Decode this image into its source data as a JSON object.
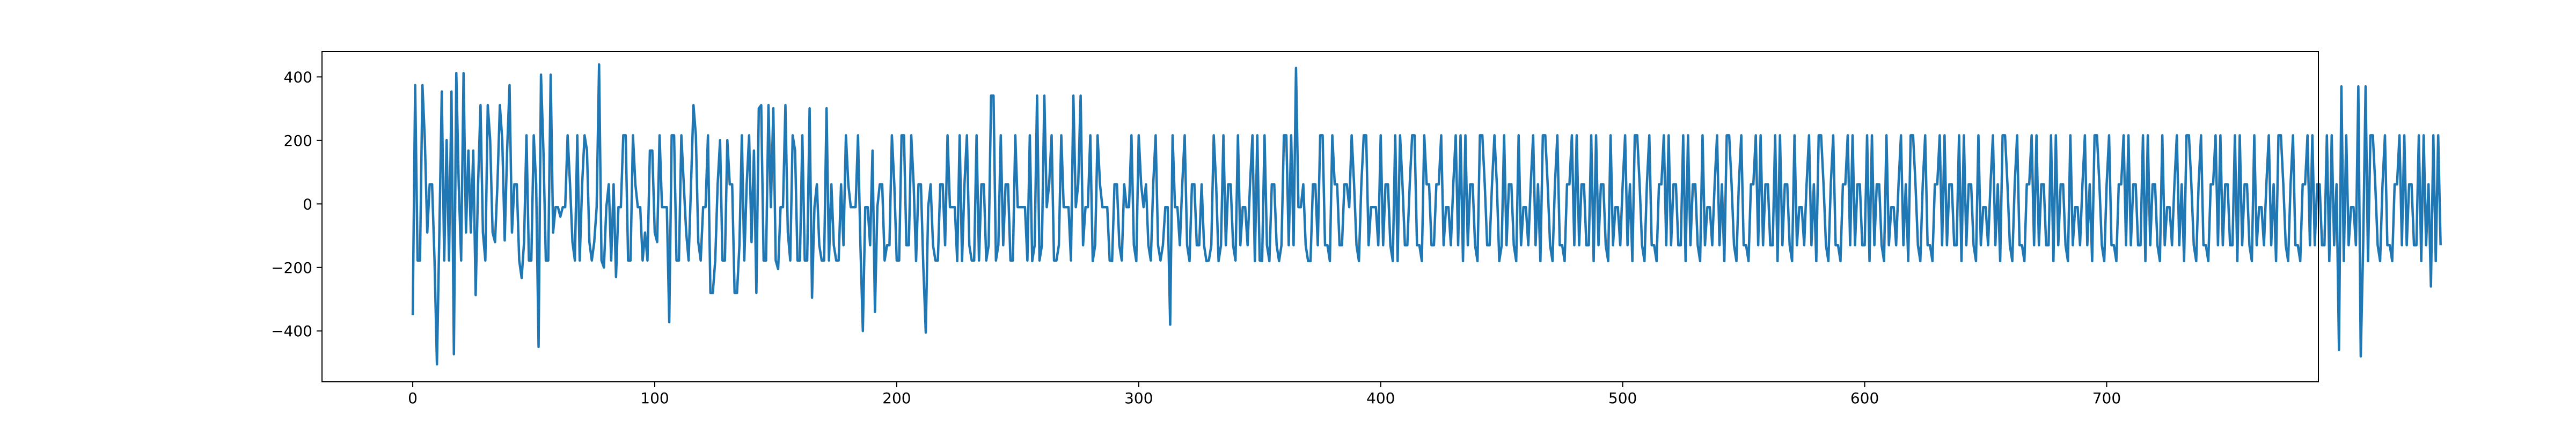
{
  "chart_data": {
    "type": "line",
    "title": "",
    "xlabel": "",
    "ylabel": "",
    "xlim": [
      -37.5,
      787.5
    ],
    "ylim": [
      -560,
      480
    ],
    "xticks": [
      0,
      100,
      200,
      300,
      400,
      500,
      600,
      700
    ],
    "yticks": [
      -400,
      -200,
      0,
      200,
      400
    ],
    "xtick_labels": [
      "0",
      "100",
      "200",
      "300",
      "400",
      "500",
      "600",
      "700"
    ],
    "ytick_labels": [
      "−400",
      "−200",
      "0",
      "200",
      "400"
    ],
    "grid": false,
    "legend": "none",
    "series": [
      {
        "color": "#1f77b4",
        "x_start": 0,
        "x_step": 1,
        "values": [
          -350,
          374,
          -178,
          -178,
          374,
          201,
          -90,
          62,
          62,
          -178,
          -505,
          -90,
          354,
          -178,
          201,
          -178,
          354,
          -473,
          412,
          62,
          -178,
          412,
          -90,
          168,
          -90,
          168,
          -287,
          62,
          311,
          -90,
          -178,
          311,
          201,
          -90,
          -120,
          62,
          311,
          201,
          -115,
          168,
          374,
          -90,
          62,
          62,
          -178,
          -233,
          -120,
          216,
          -178,
          -178,
          216,
          62,
          -450,
          407,
          168,
          -178,
          -178,
          407,
          -90,
          -10,
          -10,
          -40,
          -10,
          -10,
          216,
          62,
          -120,
          -178,
          216,
          -178,
          62,
          216,
          168,
          -120,
          -178,
          -120,
          -10,
          439,
          -178,
          -200,
          -10,
          62,
          -178,
          62,
          -230,
          -10,
          -10,
          216,
          216,
          -178,
          -178,
          216,
          62,
          -10,
          -10,
          -178,
          -90,
          -178,
          168,
          168,
          -90,
          -120,
          216,
          -10,
          -10,
          -10,
          -372,
          216,
          216,
          -178,
          -178,
          216,
          62,
          -90,
          -178,
          62,
          311,
          216,
          -120,
          -178,
          -10,
          -10,
          216,
          -280,
          -280,
          -178,
          62,
          201,
          -178,
          -178,
          201,
          62,
          62,
          -280,
          -280,
          -130,
          216,
          -178,
          62,
          216,
          -120,
          168,
          -280,
          301,
          311,
          -178,
          -178,
          311,
          -10,
          301,
          -178,
          -205,
          -10,
          -10,
          311,
          -90,
          -178,
          216,
          168,
          -178,
          -178,
          216,
          -178,
          -178,
          301,
          -295,
          -10,
          62,
          -130,
          -178,
          -178,
          301,
          -178,
          62,
          -130,
          -178,
          -178,
          62,
          -130,
          216,
          62,
          -10,
          -10,
          -10,
          216,
          -130,
          -400,
          -10,
          -10,
          -130,
          168,
          -340,
          -10,
          62,
          62,
          -178,
          -130,
          -130,
          216,
          62,
          -178,
          -178,
          216,
          216,
          -130,
          -130,
          216,
          62,
          -180,
          62,
          62,
          -200,
          -405,
          -10,
          62,
          -130,
          -178,
          -178,
          62,
          62,
          -130,
          216,
          -10,
          -10,
          -10,
          -180,
          216,
          -180,
          62,
          216,
          -130,
          -178,
          -178,
          216,
          -178,
          62,
          62,
          -178,
          -130,
          341,
          341,
          -178,
          -130,
          216,
          -130,
          62,
          62,
          -178,
          -178,
          216,
          -10,
          -10,
          -10,
          -10,
          -178,
          216,
          -180,
          -130,
          341,
          -178,
          -130,
          341,
          -10,
          62,
          216,
          -178,
          -178,
          -130,
          216,
          -10,
          -10,
          -10,
          -178,
          341,
          -10,
          62,
          341,
          -130,
          -10,
          -10,
          216,
          -180,
          -130,
          216,
          62,
          -10,
          -10,
          -10,
          -178,
          -180,
          62,
          62,
          -130,
          -178,
          62,
          -10,
          -10,
          216,
          -130,
          -180,
          216,
          62,
          -10,
          62,
          -130,
          -178,
          62,
          216,
          -130,
          -178,
          -130,
          -10,
          -10,
          -380,
          216,
          -10,
          -10,
          -130,
          62,
          216,
          -130,
          -180,
          62,
          62,
          -130,
          -130,
          62,
          -130,
          -180,
          -178,
          -130,
          216,
          62,
          -180,
          -130,
          216,
          -130,
          62,
          62,
          -130,
          -178,
          216,
          -130,
          -10,
          -10,
          -130,
          62,
          216,
          -180,
          216,
          -178,
          -180,
          216,
          -130,
          -180,
          62,
          62,
          -130,
          -180,
          -130,
          216,
          216,
          -130,
          216,
          -130,
          428,
          -10,
          -10,
          62,
          -130,
          -180,
          -180,
          62,
          62,
          -130,
          216,
          216,
          -130,
          -130,
          -180,
          216,
          62,
          62,
          -130,
          -130,
          62,
          62,
          -10,
          216,
          62,
          -130,
          -180,
          62,
          216,
          216,
          -130,
          -10,
          -10,
          -10,
          -130,
          216,
          -130,
          62,
          62,
          -130,
          -180,
          216,
          -180,
          216,
          62,
          -130,
          -130,
          62,
          216,
          216,
          -130,
          -130,
          -180,
          216,
          62,
          62,
          -130,
          -130,
          62,
          62,
          216,
          -130,
          -10,
          -10,
          -130,
          62,
          216,
          -130,
          216,
          -180,
          216,
          -130,
          62,
          62,
          -130,
          -180,
          216,
          216,
          62,
          -130,
          -130,
          62,
          216,
          62,
          -180,
          -130,
          216,
          -130,
          62,
          62,
          -130,
          -180,
          216,
          -130,
          -10,
          -10,
          -130,
          62,
          216,
          -130,
          62,
          -180,
          216,
          216,
          62,
          -130,
          -180,
          62,
          216,
          -130,
          -130,
          -180,
          62,
          62,
          216,
          -130,
          216,
          -130,
          62,
          62,
          -130,
          -130,
          216,
          -180,
          216,
          -130,
          62,
          62,
          -130,
          -180,
          216,
          -130,
          -10,
          -10,
          -130,
          62,
          216,
          -130,
          62,
          -180,
          216,
          216,
          62,
          -130,
          -180,
          62,
          216,
          -130,
          -130,
          -180,
          62,
          62,
          216,
          -130,
          216,
          -130,
          62,
          62,
          -130,
          -130,
          216,
          -180,
          216,
          -130,
          62,
          62,
          -130,
          -180,
          216,
          -130,
          -10,
          -10,
          -130,
          62,
          216,
          -130,
          62,
          -180,
          216,
          216,
          62,
          -130,
          -180,
          62,
          216,
          -130,
          -130,
          -180,
          62,
          62,
          216,
          -130,
          216,
          -130,
          62,
          62,
          -130,
          -130,
          216,
          -180,
          216,
          -130,
          62,
          62,
          -130,
          -180,
          216,
          -130,
          -10,
          -10,
          -130,
          62,
          216,
          -130,
          62,
          -180,
          216,
          216,
          62,
          -130,
          -180,
          62,
          216,
          -130,
          -130,
          -180,
          62,
          62,
          216,
          -130,
          216,
          -130,
          62,
          62,
          -130,
          -130,
          216,
          -180,
          216,
          -130,
          62,
          62,
          -130,
          -180,
          216,
          -130,
          -10,
          -10,
          -130,
          62,
          216,
          -130,
          62,
          -180,
          216,
          216,
          62,
          -130,
          -180,
          62,
          216,
          -130,
          -130,
          -180,
          62,
          62,
          216,
          -130,
          216,
          -130,
          62,
          62,
          -130,
          -130,
          216,
          -180,
          216,
          -130,
          62,
          62,
          -130,
          -180,
          216,
          -130,
          -10,
          -10,
          -130,
          62,
          216,
          -130,
          62,
          -180,
          216,
          216,
          62,
          -130,
          -180,
          62,
          216,
          -130,
          -130,
          -180,
          62,
          62,
          216,
          -130,
          216,
          -130,
          62,
          62,
          -130,
          -130,
          216,
          -180,
          216,
          -130,
          62,
          62,
          -130,
          -180,
          216,
          -130,
          -10,
          -10,
          -130,
          62,
          216,
          -130,
          62,
          -180,
          216,
          216,
          62,
          -130,
          -180,
          62,
          216,
          -130,
          -130,
          -180,
          62,
          62,
          216,
          -130,
          216,
          -130,
          62,
          62,
          -130,
          -130,
          216,
          -180,
          216,
          -130,
          62,
          62,
          -130,
          -180,
          216,
          -130,
          -10,
          -10,
          -130,
          62,
          216,
          -130,
          62,
          -180,
          216,
          216,
          62,
          -130,
          -180,
          62,
          216,
          -130,
          -130,
          -180,
          62,
          62,
          216,
          -130,
          216,
          -130,
          62,
          62,
          -130,
          -130,
          216,
          -180,
          216,
          -130,
          62,
          62,
          -130,
          -180,
          216,
          -130,
          -10,
          -10,
          -130,
          62,
          216,
          -130,
          62,
          -180,
          216,
          216,
          62,
          -130,
          -180,
          62,
          216,
          -130,
          -130,
          -180,
          62,
          62,
          216,
          -130,
          216,
          -130,
          62,
          62,
          -130,
          -130,
          216,
          -180,
          216,
          -130,
          62,
          -460,
          370,
          -180,
          216,
          -130,
          -10,
          -10,
          -130,
          370,
          -480,
          -130,
          370,
          -180,
          216,
          216,
          62,
          -130,
          -180,
          62,
          216,
          -130,
          -130,
          -180,
          62,
          62,
          216,
          -130,
          216,
          -130,
          62,
          62,
          -130,
          -130,
          216,
          -180,
          216,
          -130,
          62,
          -260,
          216,
          -180,
          216,
          -130
        ]
      }
    ]
  }
}
